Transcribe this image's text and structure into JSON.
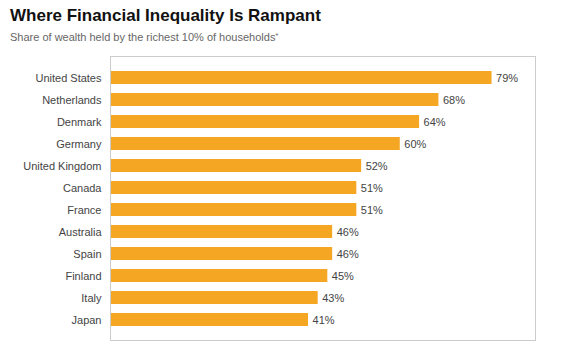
{
  "chart_data": {
    "type": "bar",
    "orientation": "horizontal",
    "title": "Where Financial Inequality Is Rampant",
    "subtitle": "Share of wealth held by the richest 10% of households⁺",
    "categories": [
      "United States",
      "Netherlands",
      "Denmark",
      "Germany",
      "United Kingdom",
      "Canada",
      "France",
      "Australia",
      "Spain",
      "Finland",
      "Italy",
      "Japan"
    ],
    "values": [
      79,
      68,
      64,
      60,
      52,
      51,
      51,
      46,
      46,
      45,
      43,
      41
    ],
    "value_labels": [
      "79%",
      "68%",
      "64%",
      "60%",
      "52%",
      "51%",
      "51%",
      "46%",
      "46%",
      "45%",
      "43%",
      "41%"
    ],
    "data_labels": true,
    "color": "#F5A623",
    "xlim": [
      0,
      88
    ],
    "tick_labels": "y",
    "grid": false
  }
}
